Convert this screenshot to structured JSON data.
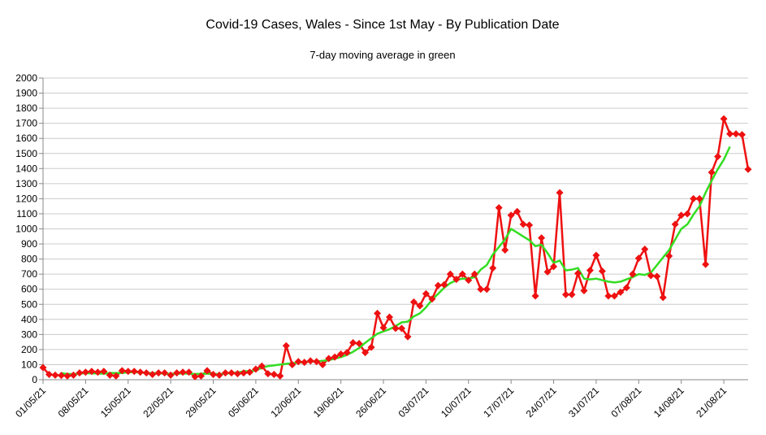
{
  "chart_data": {
    "type": "line",
    "title": "Covid-19 Cases, Wales - Since 1st May - By Publication Date",
    "subtitle": "7-day moving average in green",
    "xlabel": "",
    "ylabel": "",
    "ylim": [
      0,
      2000
    ],
    "y_ticks": [
      0,
      100,
      200,
      300,
      400,
      500,
      600,
      700,
      800,
      900,
      1000,
      1100,
      1200,
      1300,
      1400,
      1500,
      1600,
      1700,
      1800,
      1900,
      2000
    ],
    "x_tick_labels": [
      "01/05/21",
      "08/05/21",
      "15/05/21",
      "22/05/21",
      "29/05/21",
      "05/06/21",
      "12/06/21",
      "19/06/21",
      "26/06/21",
      "03/07/21",
      "10/07/21",
      "17/07/21",
      "24/07/21",
      "31/07/21",
      "07/08/21",
      "14/08/21",
      "21/08/21"
    ],
    "grid": true,
    "legend": "none",
    "colors": {
      "daily": "#ee1111",
      "average": "#33dd22",
      "grid": "#cccccc",
      "axis": "#888888"
    },
    "series": [
      {
        "key": "daily",
        "color": "#ee1111",
        "marker": "diamond",
        "values": [
          80,
          35,
          30,
          28,
          25,
          30,
          45,
          50,
          55,
          50,
          55,
          30,
          25,
          60,
          55,
          55,
          50,
          45,
          35,
          45,
          45,
          30,
          45,
          50,
          50,
          20,
          25,
          60,
          35,
          30,
          45,
          45,
          40,
          45,
          50,
          70,
          90,
          40,
          35,
          25,
          225,
          100,
          120,
          115,
          125,
          120,
          100,
          140,
          150,
          170,
          180,
          245,
          240,
          180,
          215,
          440,
          345,
          415,
          340,
          340,
          285,
          515,
          490,
          570,
          535,
          625,
          630,
          700,
          665,
          700,
          660,
          700,
          600,
          600,
          740,
          1140,
          860,
          1090,
          1115,
          1030,
          1025,
          555,
          940,
          715,
          750,
          1240,
          565,
          565,
          705,
          590,
          725,
          825,
          720,
          555,
          555,
          580,
          610,
          700,
          805,
          865,
          690,
          685,
          545,
          820,
          1030,
          1090,
          1100,
          1200,
          1200,
          765,
          1375,
          1480,
          1730,
          1630,
          1630,
          1625,
          1395
        ]
      },
      {
        "key": "average",
        "color": "#33dd22",
        "marker": "none",
        "values": [
          null,
          null,
          null,
          43,
          38,
          38,
          40,
          45,
          42,
          42,
          40,
          45,
          45,
          45,
          50,
          50,
          48,
          45,
          45,
          43,
          40,
          40,
          40,
          42,
          40,
          38,
          40,
          40,
          38,
          38,
          40,
          45,
          48,
          55,
          58,
          60,
          80,
          90,
          95,
          100,
          105,
          110,
          112,
          118,
          120,
          122,
          125,
          130,
          140,
          150,
          165,
          185,
          210,
          245,
          275,
          305,
          320,
          335,
          355,
          380,
          385,
          420,
          440,
          480,
          530,
          570,
          610,
          640,
          660,
          670,
          670,
          680,
          730,
          760,
          830,
          880,
          930,
          1000,
          975,
          950,
          925,
          885,
          895,
          840,
          775,
          790,
          725,
          730,
          740,
          670,
          665,
          670,
          660,
          650,
          645,
          650,
          665,
          680,
          700,
          695,
          710,
          760,
          810,
          860,
          930,
          1000,
          1030,
          1095,
          1150,
          1240,
          1320,
          1395,
          1460,
          1545
        ]
      }
    ]
  }
}
